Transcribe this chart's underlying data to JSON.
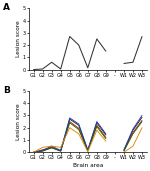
{
  "x_labels": [
    "G1",
    "G2",
    "G3",
    "G4",
    "G5",
    "G6",
    "G7",
    "G8",
    "G9",
    "-",
    "W1",
    "W2",
    "W3"
  ],
  "panel_A": [
    0.0,
    0.05,
    0.6,
    0.05,
    2.7,
    2.0,
    0.15,
    2.5,
    1.5,
    null,
    0.5,
    0.6,
    2.7
  ],
  "panel_B": {
    "black": [
      0.0,
      0.1,
      0.4,
      0.1,
      2.7,
      2.2,
      0.15,
      2.4,
      1.4,
      null,
      0.15,
      1.8,
      2.85
    ],
    "red": [
      0.0,
      0.2,
      0.4,
      0.1,
      2.5,
      1.95,
      0.15,
      2.2,
      1.2,
      null,
      0.15,
      1.6,
      2.6
    ],
    "green": [
      0.0,
      0.1,
      0.35,
      0.1,
      2.4,
      1.85,
      0.1,
      2.1,
      1.1,
      null,
      0.1,
      1.5,
      2.5
    ],
    "blue": [
      0.0,
      0.15,
      0.5,
      0.15,
      2.8,
      2.3,
      0.2,
      2.5,
      1.5,
      null,
      0.2,
      1.9,
      3.0
    ],
    "orange": [
      0.0,
      0.4,
      0.5,
      0.4,
      2.0,
      1.5,
      0.05,
      1.8,
      0.9,
      null,
      0.0,
      0.5,
      2.0
    ]
  },
  "ylim": [
    0,
    5
  ],
  "yticks": [
    0,
    1,
    2,
    3,
    4,
    5
  ],
  "ylabel": "Lesion score",
  "xlabel": "Brain area",
  "background": "#ffffff",
  "line_color_A": "#333333",
  "colors_B": {
    "black": "#222222",
    "red": "#cc1100",
    "green": "#226600",
    "blue": "#1144bb",
    "orange": "#dd8800"
  },
  "lw_A": 0.75,
  "lw_B": 0.65,
  "fontsize_tick": 3.5,
  "fontsize_label": 4.2,
  "fontsize_panel": 6.5
}
